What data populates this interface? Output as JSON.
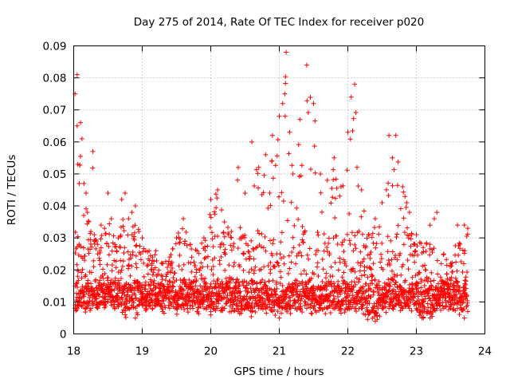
{
  "chart_data": {
    "type": "scatter",
    "title": "Day 275 of 2014, Rate Of TEC Index for receiver p020",
    "xlabel": "GPS time / hours",
    "ylabel": "ROTI / TECUs",
    "xlim": [
      18,
      24
    ],
    "ylim": [
      0,
      0.09
    ],
    "xticks": [
      "18",
      "19",
      "20",
      "21",
      "22",
      "23",
      "24"
    ],
    "yticks": [
      "0",
      "0.01",
      "0.02",
      "0.03",
      "0.04",
      "0.05",
      "0.06",
      "0.07",
      "0.08",
      "0.09"
    ],
    "marker": "+",
    "color": "#ff0000",
    "grid": true,
    "series": [
      {
        "name": "p020",
        "x": [
          18.02,
          18.05,
          18.05,
          18.06,
          18.08,
          18.1,
          18.12,
          18.15,
          18.18,
          18.2,
          18.22,
          18.25,
          18.28,
          18.3,
          18.33,
          18.35,
          18.38,
          18.4,
          18.45,
          18.5,
          18.55,
          18.6,
          18.65,
          18.7,
          18.75,
          18.8,
          18.85,
          18.9,
          18.95,
          19.0,
          19.05,
          19.1,
          19.15,
          19.2,
          19.3,
          19.4,
          19.5,
          19.6,
          19.7,
          19.8,
          19.9,
          20.0,
          20.1,
          20.2,
          20.3,
          20.4,
          20.5,
          20.6,
          20.7,
          20.8,
          20.9,
          21.0,
          21.05,
          21.08,
          21.1,
          21.15,
          21.2,
          21.3,
          21.4,
          21.5,
          21.6,
          21.7,
          21.8,
          21.9,
          22.0,
          22.05,
          22.1,
          22.2,
          22.3,
          22.4,
          22.5,
          22.6,
          22.65,
          22.7,
          22.8,
          22.9,
          23.0,
          23.1,
          23.2,
          23.3,
          23.4,
          23.5,
          23.6,
          23.7,
          23.75
        ],
        "upper": [
          0.075,
          0.081,
          0.065,
          0.053,
          0.047,
          0.066,
          0.061,
          0.047,
          0.044,
          0.038,
          0.035,
          0.032,
          0.057,
          0.031,
          0.029,
          0.028,
          0.026,
          0.034,
          0.033,
          0.044,
          0.036,
          0.028,
          0.03,
          0.042,
          0.044,
          0.036,
          0.038,
          0.04,
          0.032,
          0.03,
          0.026,
          0.026,
          0.024,
          0.026,
          0.022,
          0.024,
          0.03,
          0.036,
          0.028,
          0.026,
          0.03,
          0.042,
          0.045,
          0.035,
          0.032,
          0.052,
          0.044,
          0.06,
          0.052,
          0.056,
          0.062,
          0.068,
          0.072,
          0.075,
          0.088,
          0.063,
          0.05,
          0.067,
          0.084,
          0.072,
          0.05,
          0.048,
          0.055,
          0.046,
          0.063,
          0.074,
          0.078,
          0.045,
          0.031,
          0.036,
          0.041,
          0.062,
          0.055,
          0.062,
          0.046,
          0.038,
          0.031,
          0.027,
          0.034,
          0.038,
          0.025,
          0.022,
          0.034,
          0.034,
          0.033
        ],
        "lower": [
          0.008,
          0.009,
          0.008,
          0.009,
          0.01,
          0.009,
          0.009,
          0.01,
          0.008,
          0.01,
          0.009,
          0.008,
          0.009,
          0.01,
          0.009,
          0.008,
          0.009,
          0.01,
          0.009,
          0.01,
          0.009,
          0.008,
          0.009,
          0.009,
          0.006,
          0.008,
          0.009,
          0.005,
          0.009,
          0.009,
          0.008,
          0.009,
          0.008,
          0.009,
          0.007,
          0.008,
          0.008,
          0.009,
          0.008,
          0.007,
          0.008,
          0.007,
          0.008,
          0.008,
          0.007,
          0.007,
          0.008,
          0.007,
          0.008,
          0.008,
          0.007,
          0.005,
          0.008,
          0.008,
          0.008,
          0.008,
          0.009,
          0.008,
          0.008,
          0.008,
          0.008,
          0.008,
          0.008,
          0.008,
          0.008,
          0.008,
          0.008,
          0.008,
          0.006,
          0.004,
          0.008,
          0.008,
          0.008,
          0.009,
          0.008,
          0.008,
          0.008,
          0.005,
          0.005,
          0.008,
          0.008,
          0.008,
          0.008,
          0.005,
          0.007
        ]
      }
    ]
  }
}
